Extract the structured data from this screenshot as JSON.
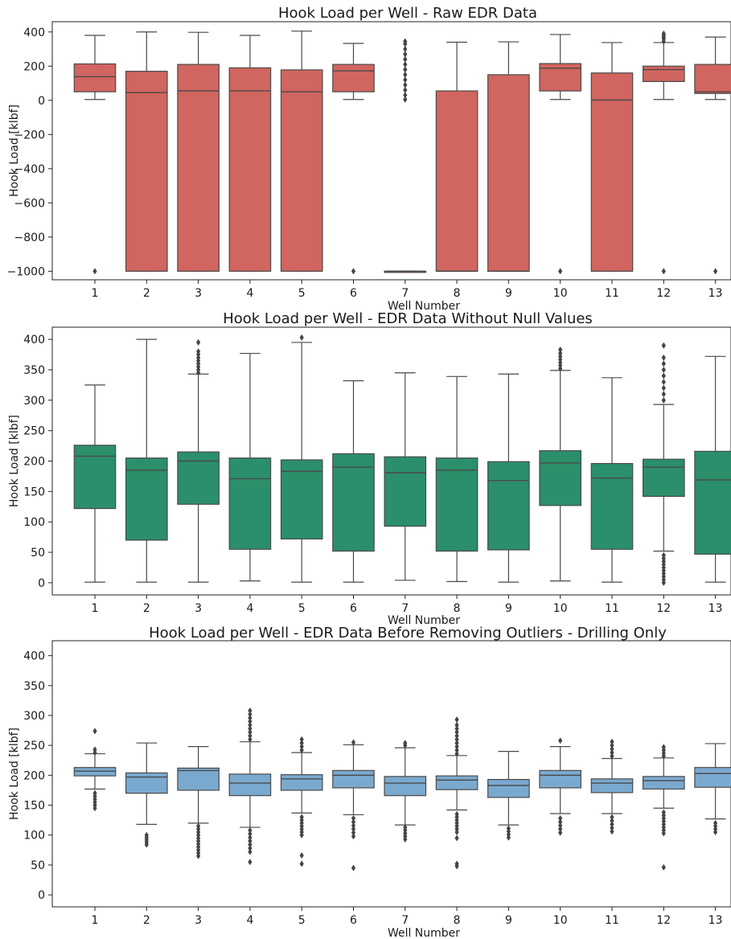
{
  "chart_data": [
    {
      "type": "box",
      "title": "Hook Load per Well - Raw EDR Data",
      "xlabel": "Well Number",
      "ylabel": "Hook Load [klbf]",
      "ylim": [
        -1050,
        460
      ],
      "yticks": [
        400,
        200,
        0,
        -200,
        -400,
        -600,
        -800,
        -1000
      ],
      "ytick_labels": [
        "400",
        "200",
        "0",
        "−200",
        "−400",
        "−600",
        "−800",
        "−1000"
      ],
      "color": "#d1655f",
      "categories": [
        "1",
        "2",
        "3",
        "4",
        "5",
        "6",
        "7",
        "8",
        "9",
        "10",
        "11",
        "12",
        "13"
      ],
      "boxes": [
        {
          "q1": 50,
          "median": 138,
          "q3": 213,
          "whislo": 5,
          "whishi": 380,
          "fliers": [
            -1000
          ]
        },
        {
          "q1": -1000,
          "median": 45,
          "q3": 170,
          "whislo": -1000,
          "whishi": 400,
          "fliers": []
        },
        {
          "q1": -1000,
          "median": 55,
          "q3": 210,
          "whislo": -1000,
          "whishi": 398,
          "fliers": []
        },
        {
          "q1": -1000,
          "median": 55,
          "q3": 190,
          "whislo": -1000,
          "whishi": 380,
          "fliers": []
        },
        {
          "q1": -1000,
          "median": 50,
          "q3": 178,
          "whislo": -1000,
          "whishi": 405,
          "fliers": []
        },
        {
          "q1": 50,
          "median": 172,
          "q3": 210,
          "whislo": 5,
          "whishi": 333,
          "fliers": [
            -1000
          ]
        },
        {
          "q1": -1000,
          "median": -1000,
          "q3": -1000,
          "whislo": -1000,
          "whishi": -1000,
          "fliers": [
            5,
            30,
            60,
            90,
            120,
            150,
            180,
            210,
            240,
            270,
            300,
            330,
            345
          ]
        },
        {
          "q1": -1000,
          "median": -1000,
          "q3": 55,
          "whislo": -1000,
          "whishi": 340,
          "fliers": []
        },
        {
          "q1": -1000,
          "median": -1000,
          "q3": 150,
          "whislo": -1000,
          "whishi": 342,
          "fliers": []
        },
        {
          "q1": 55,
          "median": 188,
          "q3": 215,
          "whislo": 5,
          "whishi": 385,
          "fliers": [
            -1000
          ]
        },
        {
          "q1": -1000,
          "median": 2,
          "q3": 160,
          "whislo": -1000,
          "whishi": 338,
          "fliers": []
        },
        {
          "q1": 110,
          "median": 180,
          "q3": 200,
          "whislo": 5,
          "whishi": 338,
          "fliers": [
            345,
            360,
            370,
            380,
            390,
            -1000
          ]
        },
        {
          "q1": 40,
          "median": 50,
          "q3": 210,
          "whislo": 5,
          "whishi": 370,
          "fliers": [
            -1000
          ]
        }
      ]
    },
    {
      "type": "box",
      "title": "Hook Load per Well - EDR Data Without Null Values",
      "xlabel": "Well Number",
      "ylabel": "Hook Load [klbf]",
      "ylim": [
        -20,
        420
      ],
      "yticks": [
        0,
        50,
        100,
        150,
        200,
        250,
        300,
        350,
        400
      ],
      "ytick_labels": [
        "0",
        "50",
        "100",
        "150",
        "200",
        "250",
        "300",
        "350",
        "400"
      ],
      "color": "#2a8f6a",
      "categories": [
        "1",
        "2",
        "3",
        "4",
        "5",
        "6",
        "7",
        "8",
        "9",
        "10",
        "11",
        "12",
        "13"
      ],
      "boxes": [
        {
          "q1": 122,
          "median": 208,
          "q3": 226,
          "whislo": 1,
          "whishi": 325,
          "fliers": []
        },
        {
          "q1": 70,
          "median": 185,
          "q3": 205,
          "whislo": 1,
          "whishi": 400,
          "fliers": []
        },
        {
          "q1": 129,
          "median": 200,
          "q3": 215,
          "whislo": 1,
          "whishi": 343,
          "fliers": [
            345,
            350,
            355,
            360,
            365,
            370,
            375,
            380,
            395
          ]
        },
        {
          "q1": 55,
          "median": 171,
          "q3": 205,
          "whislo": 3,
          "whishi": 377,
          "fliers": []
        },
        {
          "q1": 72,
          "median": 183,
          "q3": 202,
          "whislo": 1,
          "whishi": 395,
          "fliers": [
            403
          ]
        },
        {
          "q1": 52,
          "median": 190,
          "q3": 212,
          "whislo": 1,
          "whishi": 332,
          "fliers": []
        },
        {
          "q1": 93,
          "median": 181,
          "q3": 207,
          "whislo": 4,
          "whishi": 345,
          "fliers": []
        },
        {
          "q1": 52,
          "median": 185,
          "q3": 205,
          "whislo": 2,
          "whishi": 339,
          "fliers": []
        },
        {
          "q1": 54,
          "median": 168,
          "q3": 199,
          "whislo": 1,
          "whishi": 343,
          "fliers": []
        },
        {
          "q1": 127,
          "median": 197,
          "q3": 217,
          "whislo": 3,
          "whishi": 349,
          "fliers": [
            352,
            357,
            362,
            367,
            372,
            377,
            383
          ]
        },
        {
          "q1": 55,
          "median": 172,
          "q3": 196,
          "whislo": 1,
          "whishi": 337,
          "fliers": []
        },
        {
          "q1": 142,
          "median": 190,
          "q3": 203,
          "whislo": 52,
          "whishi": 293,
          "fliers": [
            0,
            5,
            10,
            15,
            20,
            25,
            30,
            35,
            40,
            45,
            300,
            310,
            320,
            330,
            340,
            350,
            360,
            370,
            390
          ]
        },
        {
          "q1": 47,
          "median": 169,
          "q3": 216,
          "whislo": 1,
          "whishi": 372,
          "fliers": []
        }
      ]
    },
    {
      "type": "box",
      "title": "Hook Load per Well - EDR Data Before Removing Outliers - Drilling Only",
      "xlabel": "Well Number",
      "ylabel": "Hook Load [klbf]",
      "ylim": [
        -20,
        425
      ],
      "yticks": [
        0,
        50,
        100,
        150,
        200,
        250,
        300,
        350,
        400
      ],
      "ytick_labels": [
        "0",
        "50",
        "100",
        "150",
        "200",
        "250",
        "300",
        "350",
        "400"
      ],
      "color": "#7aa9cf",
      "categories": [
        "1",
        "2",
        "3",
        "4",
        "5",
        "6",
        "7",
        "8",
        "9",
        "10",
        "11",
        "12",
        "13"
      ],
      "boxes": [
        {
          "q1": 199,
          "median": 207,
          "q3": 213,
          "whislo": 177,
          "whishi": 236,
          "fliers": [
            145,
            150,
            155,
            160,
            165,
            170,
            238,
            243,
            274
          ]
        },
        {
          "q1": 170,
          "median": 197,
          "q3": 204,
          "whislo": 118,
          "whishi": 254,
          "fliers": [
            84,
            88,
            92,
            96,
            100
          ]
        },
        {
          "q1": 175,
          "median": 208,
          "q3": 212,
          "whislo": 120,
          "whishi": 248,
          "fliers": [
            65,
            70,
            75,
            80,
            85,
            90,
            95,
            100,
            105,
            110,
            115
          ]
        },
        {
          "q1": 166,
          "median": 187,
          "q3": 202,
          "whislo": 113,
          "whishi": 256,
          "fliers": [
            55,
            72,
            78,
            84,
            90,
            96,
            102,
            108,
            260,
            266,
            272,
            278,
            284,
            290,
            296,
            302,
            308
          ]
        },
        {
          "q1": 175,
          "median": 194,
          "q3": 201,
          "whislo": 137,
          "whishi": 238,
          "fliers": [
            52,
            66,
            100,
            105,
            110,
            115,
            120,
            125,
            130,
            242,
            248,
            254,
            260
          ]
        },
        {
          "q1": 179,
          "median": 200,
          "q3": 208,
          "whislo": 134,
          "whishi": 251,
          "fliers": [
            45,
            98,
            104,
            110,
            116,
            122,
            128,
            255
          ]
        },
        {
          "q1": 166,
          "median": 187,
          "q3": 198,
          "whislo": 117,
          "whishi": 246,
          "fliers": [
            93,
            98,
            103,
            108,
            113,
            250,
            254
          ]
        },
        {
          "q1": 176,
          "median": 192,
          "q3": 199,
          "whislo": 142,
          "whishi": 233,
          "fliers": [
            48,
            52,
            95,
            105,
            110,
            115,
            120,
            125,
            130,
            135,
            236,
            242,
            248,
            254,
            260,
            266,
            272,
            278,
            284,
            293
          ]
        },
        {
          "q1": 163,
          "median": 183,
          "q3": 193,
          "whislo": 117,
          "whishi": 240,
          "fliers": [
            96,
            101,
            106,
            111
          ]
        },
        {
          "q1": 179,
          "median": 200,
          "q3": 208,
          "whislo": 136,
          "whishi": 248,
          "fliers": [
            104,
            110,
            116,
            122,
            128,
            258
          ]
        },
        {
          "q1": 171,
          "median": 187,
          "q3": 194,
          "whislo": 136,
          "whishi": 228,
          "fliers": [
            106,
            112,
            118,
            124,
            130,
            232,
            238,
            244,
            250,
            256
          ]
        },
        {
          "q1": 177,
          "median": 191,
          "q3": 198,
          "whislo": 145,
          "whishi": 229,
          "fliers": [
            46,
            103,
            108,
            113,
            118,
            123,
            128,
            133,
            138,
            232,
            237,
            242,
            247
          ]
        },
        {
          "q1": 180,
          "median": 203,
          "q3": 213,
          "whislo": 127,
          "whishi": 253,
          "fliers": [
            105,
            110,
            115,
            120
          ]
        }
      ]
    }
  ]
}
